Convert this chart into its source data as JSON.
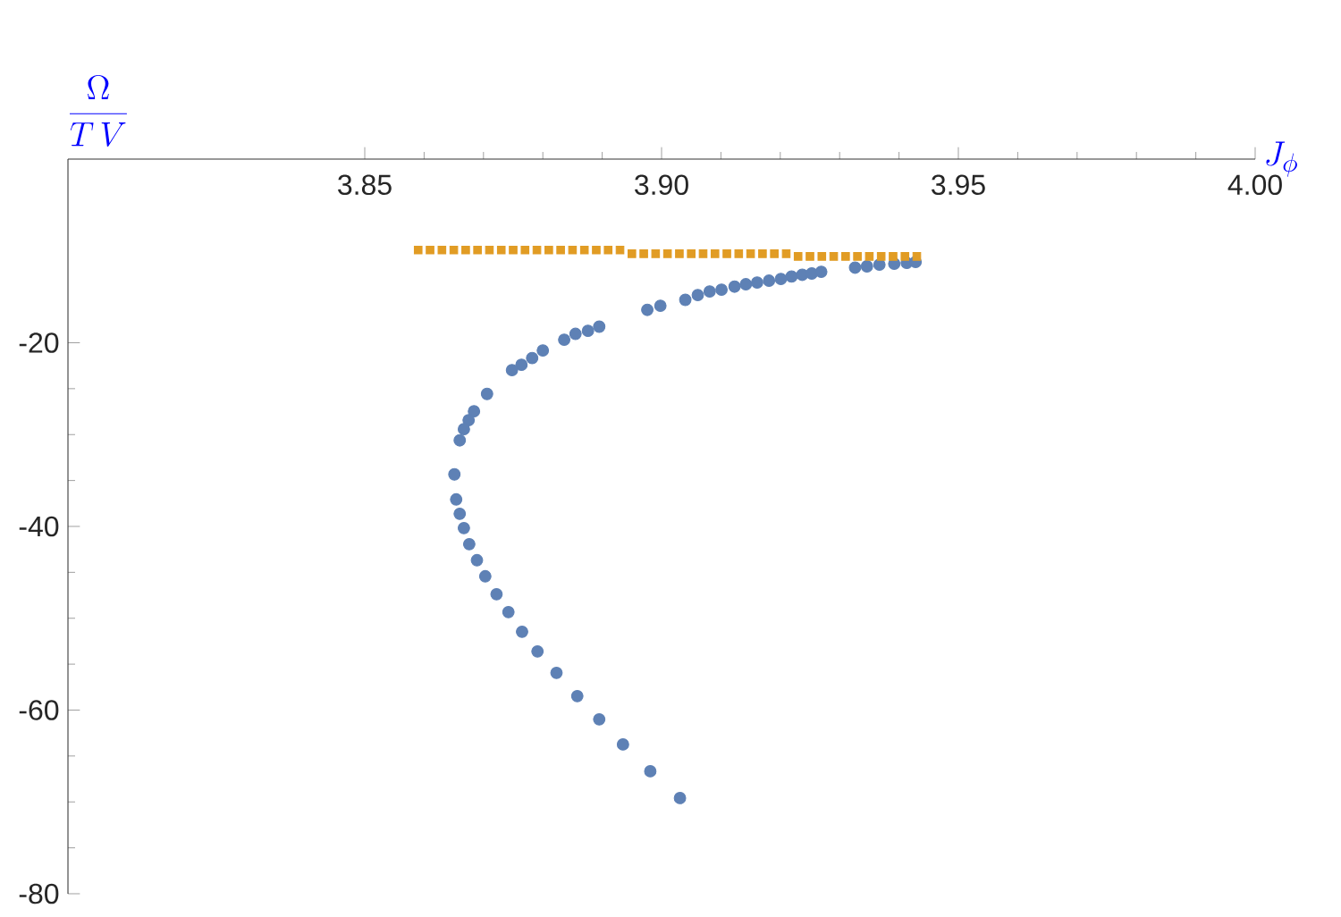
{
  "chart_data": {
    "type": "scatter",
    "xlabel": "J_{\\phi}",
    "ylabel": "\\frac{\\Omega}{T\\,V}",
    "xlim": [
      3.8,
      4.0
    ],
    "ylim": [
      -80,
      0
    ],
    "xticks": [
      3.85,
      {
        "value": 3.9,
        "label": "3.90"
      },
      3.95,
      {
        "value": 4.0,
        "label": "4.00"
      }
    ],
    "yticks": [
      -20,
      -40,
      -60,
      -80
    ],
    "series": [
      {
        "color": "#5e81b5",
        "marker": "circle",
        "x": [
          3.8895,
          3.8876,
          3.8855,
          3.8836,
          3.88,
          3.8782,
          3.8764,
          3.8748,
          3.8706,
          3.8684,
          3.8675,
          3.8667,
          3.866,
          3.8651,
          3.8654,
          3.866,
          3.8667,
          3.8676,
          3.8689,
          3.8703,
          3.8722,
          3.8742,
          3.8765,
          3.8791,
          3.8823,
          3.8858,
          3.8895,
          3.8935,
          3.8981,
          3.9031,
          3.8976,
          3.8998,
          3.904,
          3.9061,
          3.9081,
          3.9101,
          3.9123,
          3.9142,
          3.9161,
          3.9181,
          3.9201,
          3.9219,
          3.9237,
          3.9253,
          3.9269,
          3.9326,
          3.9346,
          3.9367,
          3.9392,
          3.9413,
          3.9428
        ],
        "values": [
          -18.25,
          -18.7,
          -19.03,
          -19.67,
          -20.84,
          -21.67,
          -22.4,
          -22.98,
          -25.57,
          -27.46,
          -28.43,
          -29.41,
          -30.63,
          -34.33,
          -37.06,
          -38.62,
          -40.18,
          -41.93,
          -43.68,
          -45.43,
          -47.38,
          -49.33,
          -51.47,
          -53.61,
          -55.95,
          -58.48,
          -61.01,
          -63.74,
          -66.66,
          -69.58,
          -16.42,
          -15.97,
          -15.33,
          -14.8,
          -14.41,
          -14.22,
          -13.89,
          -13.63,
          -13.44,
          -13.24,
          -13.05,
          -12.79,
          -12.6,
          -12.46,
          -12.27,
          -11.82,
          -11.68,
          -11.49,
          -11.39,
          -11.3,
          -11.2
        ]
      },
      {
        "color": "#e19c24",
        "marker": "square",
        "x": [
          3.859,
          3.861,
          3.863,
          3.865,
          3.867,
          3.869,
          3.871,
          3.873,
          3.875,
          3.877,
          3.879,
          3.881,
          3.883,
          3.885,
          3.887,
          3.889,
          3.891,
          3.893,
          3.895,
          3.897,
          3.899,
          3.901,
          3.903,
          3.905,
          3.907,
          3.909,
          3.911,
          3.913,
          3.915,
          3.917,
          3.919,
          3.921,
          3.923,
          3.925,
          3.927,
          3.929,
          3.931,
          3.933,
          3.935,
          3.937,
          3.939,
          3.941,
          3.943
        ],
        "values": [
          -9.9,
          -9.9,
          -9.9,
          -9.9,
          -9.9,
          -9.9,
          -9.9,
          -9.9,
          -9.9,
          -9.9,
          -9.9,
          -9.9,
          -9.9,
          -9.9,
          -9.9,
          -9.9,
          -9.9,
          -9.9,
          -10.3,
          -10.3,
          -10.3,
          -10.3,
          -10.3,
          -10.3,
          -10.3,
          -10.3,
          -10.3,
          -10.3,
          -10.3,
          -10.3,
          -10.3,
          -10.3,
          -10.6,
          -10.6,
          -10.6,
          -10.6,
          -10.6,
          -10.6,
          -10.6,
          -10.6,
          -10.6,
          -10.6,
          -10.6
        ]
      }
    ]
  }
}
